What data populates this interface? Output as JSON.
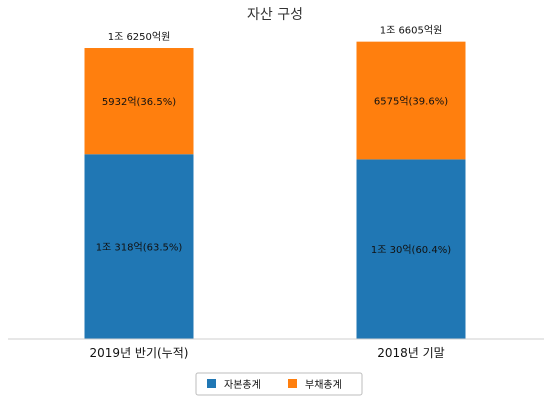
{
  "chart_data": {
    "type": "bar",
    "stacked": true,
    "title": "자산 구성",
    "categories": [
      "2019년 반기(누적)",
      "2018년 기말"
    ],
    "series": [
      {
        "name": "자본총계",
        "color": "#2077b4",
        "values": [
          10318,
          10030
        ],
        "labels": [
          "1조 318억(63.5%)",
          "1조 30억(60.4%)"
        ]
      },
      {
        "name": "부채총계",
        "color": "#ff7f0e",
        "values": [
          5932,
          6575
        ],
        "labels": [
          "5932억(36.5%)",
          "6575억(39.6%)"
        ]
      }
    ],
    "totals": [
      "1조 6250억원",
      "1조 6605억원"
    ],
    "ylim": [
      0,
      17200
    ],
    "legend_position": "bottom"
  }
}
